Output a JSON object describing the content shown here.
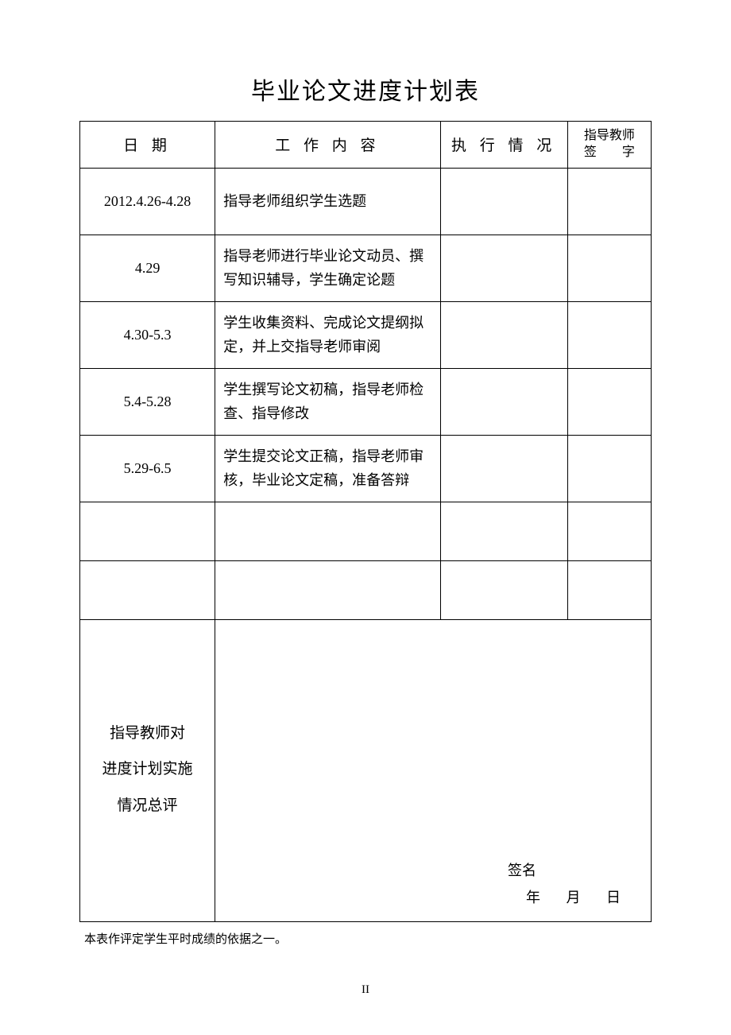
{
  "title": "毕业论文进度计划表",
  "headers": {
    "date": "日 期",
    "content": "工 作 内 容",
    "status": "执 行 情 况",
    "sign_l1": "指导教师",
    "sign_l2": "签　　字"
  },
  "rows": [
    {
      "date": "2012.4.26-4.28",
      "content": "指导老师组织学生选题"
    },
    {
      "date": "4.29",
      "content": "指导老师进行毕业论文动员、撰写知识辅导，学生确定论题"
    },
    {
      "date": "4.30-5.3",
      "content": "学生收集资料、完成论文提纲拟定，并上交指导老师审阅"
    },
    {
      "date": "5.4-5.28",
      "content": "学生撰写论文初稿，指导老师检查、指导修改"
    },
    {
      "date": "5.29-6.5",
      "content": "学生提交论文正稿，指导老师审核，毕业论文定稿，准备答辩"
    }
  ],
  "summary": {
    "l1": "指导教师对",
    "l2": "进度计划实施",
    "l3": "情况总评"
  },
  "signature": {
    "name_label": "签名",
    "year": "年",
    "month": "月",
    "day": "日"
  },
  "footnote": "本表作评定学生平时成绩的依据之一。",
  "page_number": "II"
}
